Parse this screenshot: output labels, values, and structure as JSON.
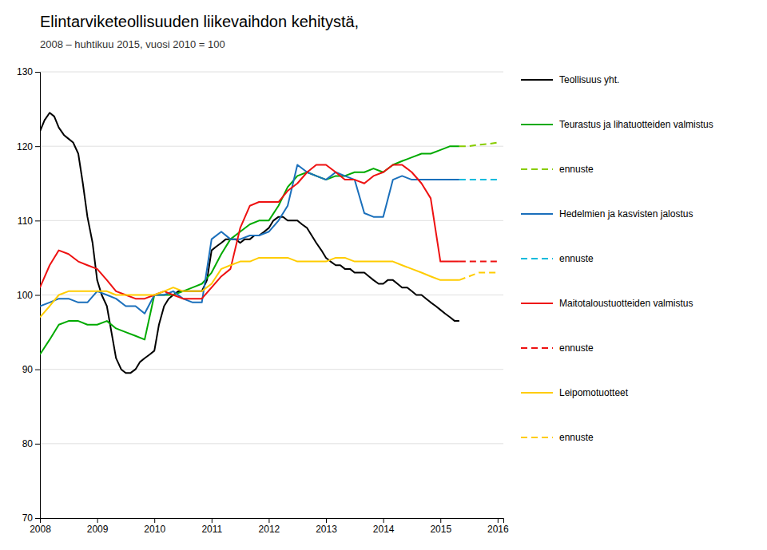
{
  "chart_data": {
    "type": "line",
    "title": "Elintarviketeollisuuden liikevaihdon kehitystä,",
    "subtitle": "2008 – huhtikuu 2015, vuosi 2010 = 100",
    "xlim": [
      2008,
      2016.1
    ],
    "xticks": [
      2008,
      2009,
      2010,
      2011,
      2012,
      2013,
      2014,
      2015,
      2016
    ],
    "ylim": [
      70,
      130
    ],
    "yticks": [
      70,
      80,
      90,
      100,
      110,
      120,
      130
    ],
    "grid": true,
    "series": [
      {
        "name": "Teollisuus yht.",
        "color": "#000000",
        "line_style": "solid",
        "x": [
          2008.0,
          2008.08,
          2008.17,
          2008.25,
          2008.33,
          2008.42,
          2008.5,
          2008.58,
          2008.67,
          2008.75,
          2008.83,
          2008.92,
          2009.0,
          2009.08,
          2009.17,
          2009.25,
          2009.33,
          2009.42,
          2009.5,
          2009.58,
          2009.67,
          2009.75,
          2009.83,
          2009.92,
          2010.0,
          2010.08,
          2010.17,
          2010.25,
          2010.33,
          2010.42,
          2010.5,
          2010.58,
          2010.67,
          2010.75,
          2010.83,
          2010.92,
          2011.0,
          2011.08,
          2011.17,
          2011.25,
          2011.33,
          2011.42,
          2011.5,
          2011.58,
          2011.67,
          2011.75,
          2011.83,
          2011.92,
          2012.0,
          2012.08,
          2012.17,
          2012.25,
          2012.33,
          2012.42,
          2012.5,
          2012.58,
          2012.67,
          2012.75,
          2012.83,
          2012.92,
          2013.0,
          2013.08,
          2013.17,
          2013.25,
          2013.33,
          2013.42,
          2013.5,
          2013.58,
          2013.67,
          2013.75,
          2013.83,
          2013.92,
          2014.0,
          2014.08,
          2014.17,
          2014.25,
          2014.33,
          2014.42,
          2014.5,
          2014.58,
          2014.67,
          2014.75,
          2014.83,
          2014.92,
          2015.0,
          2015.08,
          2015.17,
          2015.25,
          2015.33
        ],
        "values": [
          122.0,
          123.5,
          124.5,
          124.0,
          122.5,
          121.5,
          121.0,
          120.5,
          119.0,
          115.0,
          110.5,
          107.0,
          102.0,
          100.0,
          98.5,
          95.0,
          91.5,
          90.0,
          89.5,
          89.5,
          90.0,
          91.0,
          91.5,
          92.0,
          92.5,
          96.0,
          98.5,
          99.5,
          100.0,
          100.5,
          100.5,
          100.5,
          100.5,
          100.5,
          100.5,
          102.0,
          106.0,
          106.5,
          107.0,
          107.5,
          107.5,
          107.5,
          107.0,
          107.5,
          107.5,
          108.0,
          108.0,
          108.5,
          109.0,
          110.0,
          110.5,
          110.5,
          110.0,
          110.0,
          110.0,
          109.5,
          109.0,
          108.0,
          107.0,
          106.0,
          105.0,
          104.5,
          104.0,
          104.0,
          103.5,
          103.5,
          103.0,
          103.0,
          103.0,
          102.5,
          102.0,
          101.5,
          101.5,
          102.0,
          102.0,
          101.5,
          101.0,
          101.0,
          100.5,
          100.0,
          100.0,
          99.5,
          99.0,
          98.5,
          98.0,
          97.5,
          97.0,
          96.5,
          96.5
        ]
      },
      {
        "name": "Teurastus ja lihatuotteiden valmistus",
        "color": "#00aa00",
        "line_style": "solid",
        "x": [
          2008.0,
          2008.17,
          2008.33,
          2008.5,
          2008.67,
          2008.83,
          2009.0,
          2009.17,
          2009.33,
          2009.5,
          2009.67,
          2009.83,
          2010.0,
          2010.17,
          2010.33,
          2010.5,
          2010.67,
          2010.83,
          2011.0,
          2011.17,
          2011.33,
          2011.5,
          2011.67,
          2011.83,
          2012.0,
          2012.17,
          2012.33,
          2012.5,
          2012.67,
          2012.83,
          2013.0,
          2013.17,
          2013.33,
          2013.5,
          2013.67,
          2013.83,
          2014.0,
          2014.17,
          2014.33,
          2014.5,
          2014.67,
          2014.83,
          2015.0,
          2015.17,
          2015.33
        ],
        "values": [
          92.0,
          94.0,
          96.0,
          96.5,
          96.5,
          96.0,
          96.0,
          96.5,
          95.5,
          95.0,
          94.5,
          94.0,
          100.0,
          100.0,
          100.0,
          100.5,
          101.0,
          101.5,
          103.0,
          105.5,
          107.5,
          108.5,
          109.5,
          110.0,
          110.0,
          112.0,
          114.5,
          116.0,
          116.5,
          116.0,
          115.5,
          116.0,
          116.0,
          116.5,
          116.5,
          117.0,
          116.5,
          117.5,
          118.0,
          118.5,
          119.0,
          119.0,
          119.5,
          120.0,
          120.0
        ]
      },
      {
        "name": "ennuste",
        "color": "#88cc00",
        "line_style": "dashed",
        "x": [
          2015.33,
          2015.5,
          2015.67,
          2015.83,
          2016.0
        ],
        "values": [
          120.0,
          120.0,
          120.2,
          120.3,
          120.5
        ]
      },
      {
        "name": "Hedelmien ja kasvisten jalostus",
        "color": "#1a6fbb",
        "line_style": "solid",
        "x": [
          2008.0,
          2008.17,
          2008.33,
          2008.5,
          2008.67,
          2008.83,
          2009.0,
          2009.17,
          2009.33,
          2009.5,
          2009.67,
          2009.83,
          2010.0,
          2010.17,
          2010.33,
          2010.5,
          2010.67,
          2010.83,
          2011.0,
          2011.17,
          2011.33,
          2011.5,
          2011.67,
          2011.83,
          2012.0,
          2012.17,
          2012.33,
          2012.5,
          2012.67,
          2012.83,
          2013.0,
          2013.17,
          2013.33,
          2013.5,
          2013.67,
          2013.83,
          2014.0,
          2014.17,
          2014.33,
          2014.5,
          2014.67,
          2014.83,
          2015.0,
          2015.17,
          2015.33
        ],
        "values": [
          98.5,
          99.0,
          99.5,
          99.5,
          99.0,
          99.0,
          100.5,
          100.0,
          99.5,
          98.5,
          98.5,
          97.5,
          100.0,
          100.0,
          100.5,
          99.5,
          99.0,
          99.0,
          107.5,
          108.5,
          107.5,
          107.5,
          108.0,
          108.0,
          108.5,
          110.0,
          112.0,
          117.5,
          116.5,
          116.0,
          115.5,
          116.5,
          116.0,
          115.5,
          111.0,
          110.5,
          110.5,
          115.5,
          116.0,
          115.5,
          115.5,
          115.5,
          115.5,
          115.5,
          115.5
        ]
      },
      {
        "name": "ennuste",
        "color": "#00bbdd",
        "line_style": "dashed",
        "x": [
          2015.33,
          2015.5,
          2015.67,
          2015.83,
          2016.0
        ],
        "values": [
          115.5,
          115.5,
          115.5,
          115.5,
          115.5
        ]
      },
      {
        "name": "Maitotaloustuotteiden valmistus",
        "color": "#ee1111",
        "line_style": "solid",
        "x": [
          2008.0,
          2008.17,
          2008.33,
          2008.5,
          2008.67,
          2008.83,
          2009.0,
          2009.17,
          2009.33,
          2009.5,
          2009.67,
          2009.83,
          2010.0,
          2010.17,
          2010.33,
          2010.5,
          2010.67,
          2010.83,
          2011.0,
          2011.17,
          2011.33,
          2011.5,
          2011.67,
          2011.83,
          2012.0,
          2012.17,
          2012.33,
          2012.5,
          2012.67,
          2012.83,
          2013.0,
          2013.17,
          2013.33,
          2013.5,
          2013.67,
          2013.83,
          2014.0,
          2014.17,
          2014.33,
          2014.5,
          2014.67,
          2014.83,
          2015.0,
          2015.17,
          2015.33
        ],
        "values": [
          101.0,
          104.0,
          106.0,
          105.5,
          104.5,
          104.0,
          103.5,
          102.0,
          100.5,
          100.0,
          99.5,
          99.5,
          100.0,
          100.5,
          100.0,
          99.5,
          99.5,
          99.5,
          101.0,
          102.5,
          103.5,
          109.0,
          112.0,
          112.5,
          112.5,
          112.5,
          114.0,
          115.0,
          116.5,
          117.5,
          117.5,
          116.5,
          115.5,
          115.5,
          115.0,
          116.0,
          116.5,
          117.5,
          117.5,
          116.5,
          115.0,
          113.0,
          104.5,
          104.5,
          104.5
        ]
      },
      {
        "name": "ennuste",
        "color": "#ee1111",
        "line_style": "dashed",
        "x": [
          2015.33,
          2015.5,
          2015.67,
          2015.83,
          2016.0
        ],
        "values": [
          104.5,
          104.5,
          104.5,
          104.5,
          104.5
        ]
      },
      {
        "name": "Leipomotuotteet",
        "color": "#ffcc00",
        "line_style": "solid",
        "x": [
          2008.0,
          2008.17,
          2008.33,
          2008.5,
          2008.67,
          2008.83,
          2009.0,
          2009.17,
          2009.33,
          2009.5,
          2009.67,
          2009.83,
          2010.0,
          2010.17,
          2010.33,
          2010.5,
          2010.67,
          2010.83,
          2011.0,
          2011.17,
          2011.33,
          2011.5,
          2011.67,
          2011.83,
          2012.0,
          2012.17,
          2012.33,
          2012.5,
          2012.67,
          2012.83,
          2013.0,
          2013.17,
          2013.33,
          2013.5,
          2013.67,
          2013.83,
          2014.0,
          2014.17,
          2014.33,
          2014.5,
          2014.67,
          2014.83,
          2015.0,
          2015.17,
          2015.33
        ],
        "values": [
          97.0,
          98.5,
          100.0,
          100.5,
          100.5,
          100.5,
          100.5,
          100.5,
          100.0,
          100.0,
          100.0,
          100.0,
          100.0,
          100.5,
          101.0,
          100.5,
          100.5,
          100.5,
          101.5,
          103.5,
          104.0,
          104.5,
          104.5,
          105.0,
          105.0,
          105.0,
          105.0,
          104.5,
          104.5,
          104.5,
          104.5,
          105.0,
          105.0,
          104.5,
          104.5,
          104.5,
          104.5,
          104.5,
          104.0,
          103.5,
          103.0,
          102.5,
          102.0,
          102.0,
          102.0
        ]
      },
      {
        "name": "ennuste",
        "color": "#ffcc00",
        "line_style": "dashed",
        "x": [
          2015.33,
          2015.5,
          2015.67,
          2015.83,
          2016.0
        ],
        "values": [
          102.0,
          102.5,
          103.0,
          103.0,
          103.0
        ]
      }
    ]
  }
}
